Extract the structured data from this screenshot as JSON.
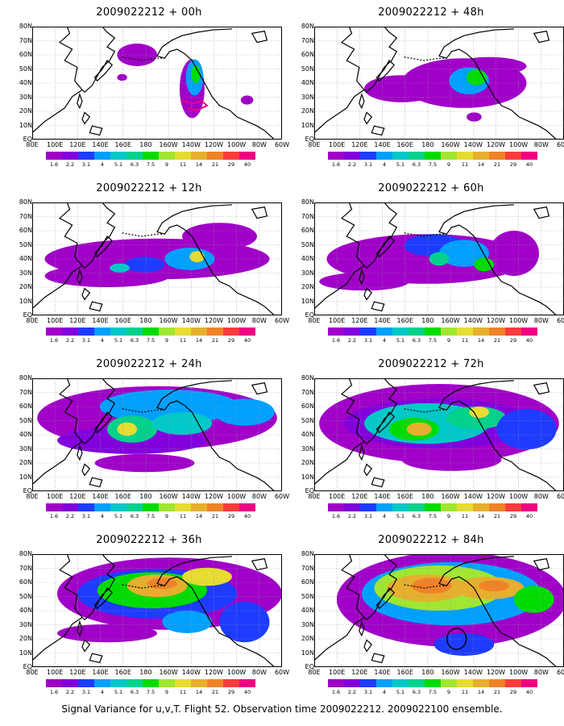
{
  "panels": [
    {
      "title": "2009022212 + 00h",
      "level": 0
    },
    {
      "title": "2009022212 + 48h",
      "level": 4
    },
    {
      "title": "2009022212 + 12h",
      "level": 1
    },
    {
      "title": "2009022212 + 60h",
      "level": 5
    },
    {
      "title": "2009022212 + 24h",
      "level": 2
    },
    {
      "title": "2009022212 + 72h",
      "level": 6
    },
    {
      "title": "2009022212 + 36h",
      "level": 3
    },
    {
      "title": "2009022212 + 84h",
      "level": 7
    }
  ],
  "y_ticks": [
    "80N",
    "70N",
    "60N",
    "50N",
    "40N",
    "30N",
    "20N",
    "10N",
    "EQ"
  ],
  "x_ticks": [
    "80E",
    "100E",
    "120E",
    "140E",
    "160E",
    "180",
    "160W",
    "140W",
    "120W",
    "100W",
    "80W",
    "60W"
  ],
  "colorbar": {
    "labels": [
      "1.6",
      "2.2",
      "3.1",
      "4",
      "5.1",
      "6.3",
      "7.5",
      "9",
      "11",
      "14",
      "21",
      "29",
      "40"
    ],
    "colors": [
      "#a000c8",
      "#8200dc",
      "#1e3cff",
      "#00a0ff",
      "#00c8c8",
      "#00d28c",
      "#00dc00",
      "#a0e632",
      "#e6dc32",
      "#e6af2d",
      "#f08228",
      "#fa3c3c",
      "#f00082"
    ]
  },
  "caption": "Signal Variance for u,v,T. Flight 52. Observation time 2009022212. 2009022100 ensemble.",
  "chart_data": {
    "type": "heatmap",
    "title": "Signal Variance for u,v,T. Flight 52. Observation time 2009022212. 2009022100 ensemble.",
    "lon_range": [
      "80E",
      "60W"
    ],
    "lat_range": [
      "EQ",
      "80N"
    ],
    "forecast_hours": [
      "00h",
      "12h",
      "24h",
      "36h",
      "48h",
      "60h",
      "72h",
      "84h"
    ],
    "contour_levels": [
      1.6,
      2.2,
      3.1,
      4,
      5.1,
      6.3,
      7.5,
      9,
      11,
      14,
      21,
      29,
      40
    ]
  }
}
